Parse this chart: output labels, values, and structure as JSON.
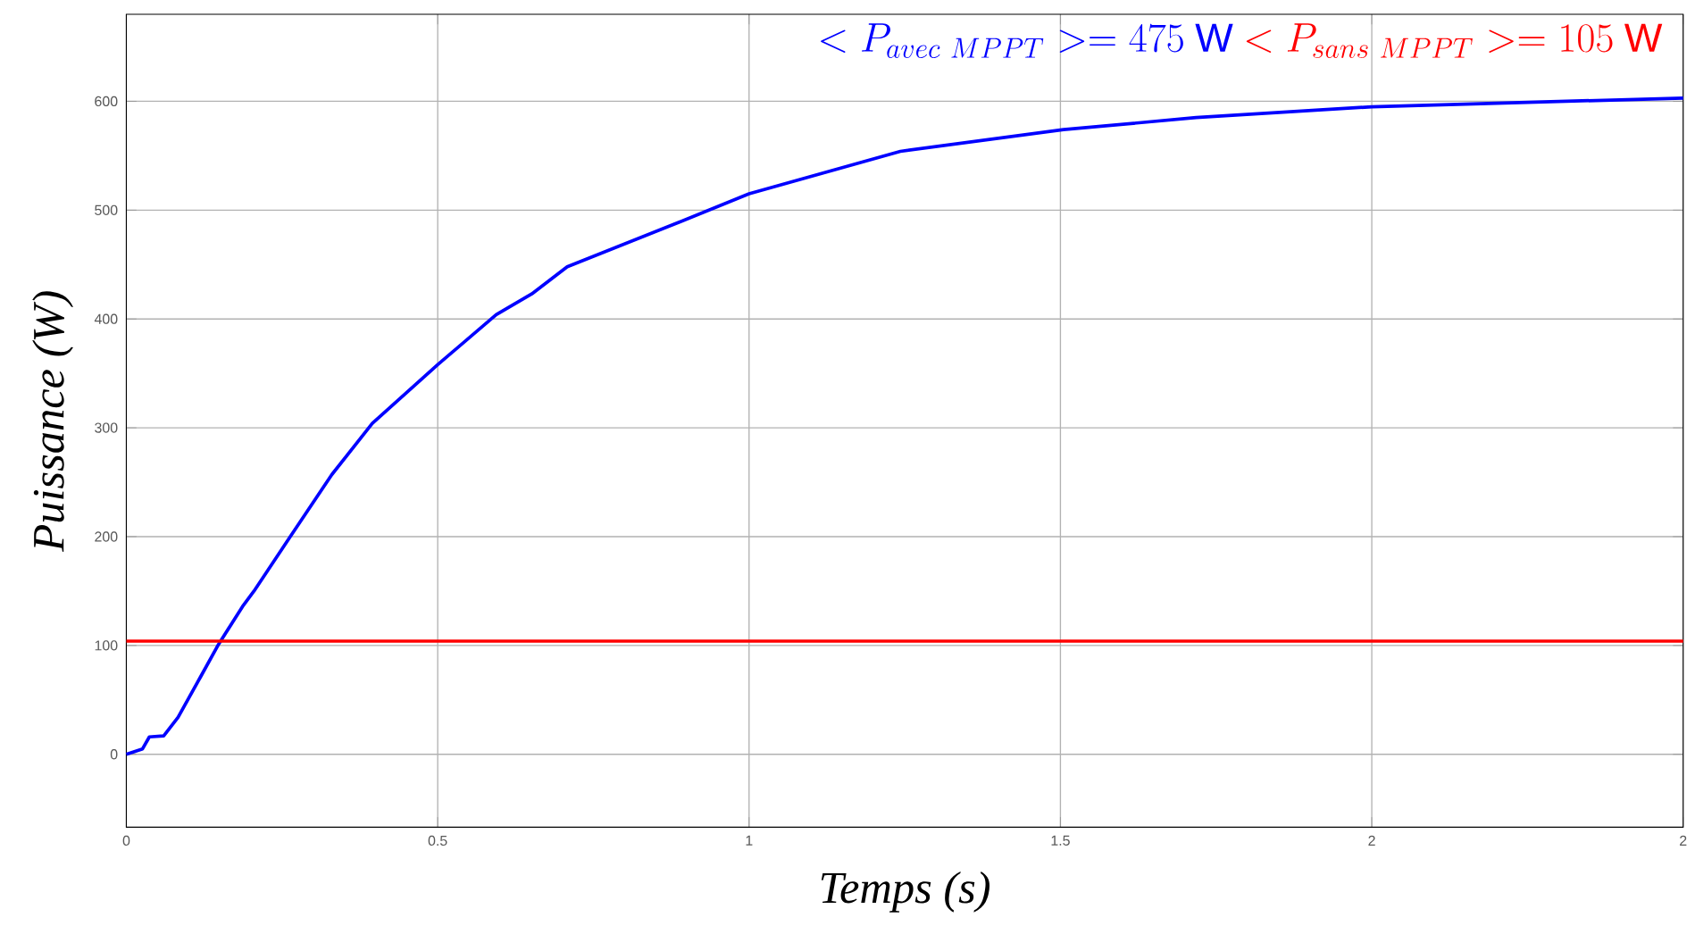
{
  "chart_data": {
    "type": "line",
    "xlabel": "Temps (s)",
    "ylabel": "Puissance (W)",
    "xlim": [
      0,
      2.5
    ],
    "xticks": [
      0,
      0.5,
      1,
      1.5,
      2,
      {
        "value": 2.5,
        "label": "2"
      }
    ],
    "ylim": [
      -67,
      680
    ],
    "yticks": [
      0,
      100,
      200,
      300,
      400,
      500,
      600
    ],
    "grid": true,
    "marker": "none",
    "line_style": "solid",
    "annotations": [
      "<P_{avec\\ MPPT}> = 475\\ \\mathrm{W}",
      "<P_{sans\\ MPPT}> = 105\\ \\mathrm{W}"
    ],
    "series": [
      {
        "color": "#0000ff",
        "x": [
          0,
          0.026,
          0.037,
          0.06,
          0.083,
          0.12,
          0.148,
          0.188,
          0.205,
          0.262,
          0.33,
          0.395,
          0.5,
          0.594,
          0.651,
          0.708,
          0.888,
          1.0,
          1.243,
          1.505,
          1.718,
          2.0,
          2.5
        ],
        "values": [
          0,
          5,
          16,
          17,
          34,
          72,
          101,
          137,
          150,
          199,
          257,
          304,
          358,
          404,
          423,
          448,
          489,
          515,
          554,
          574,
          585,
          595,
          603
        ]
      },
      {
        "color": "#ff0000",
        "x": [
          0,
          2.5
        ],
        "values": [
          104,
          104
        ]
      }
    ]
  }
}
